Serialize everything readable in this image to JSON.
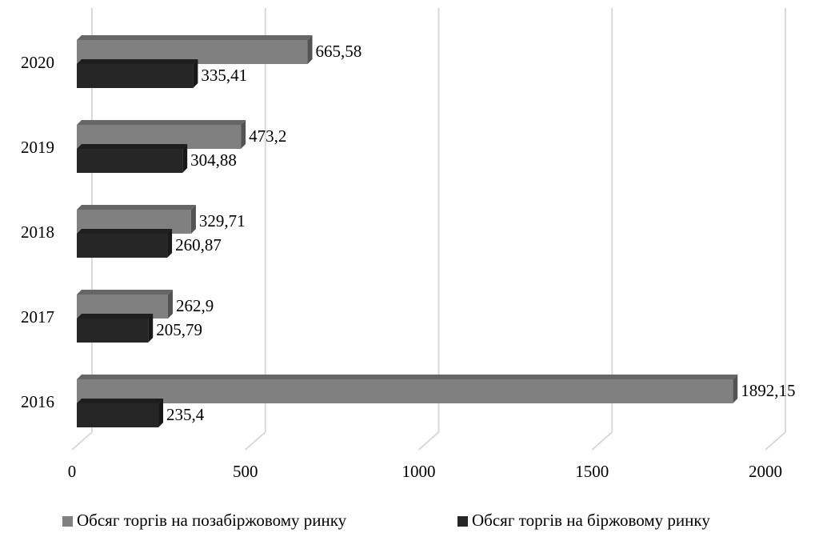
{
  "chart_data": {
    "type": "bar",
    "orientation": "horizontal",
    "categories": [
      "2016",
      "2017",
      "2018",
      "2019",
      "2020"
    ],
    "series": [
      {
        "name": "Обсяг торгів на позабіржовому ринку",
        "color": "#808080",
        "values": [
          1892.15,
          262.9,
          329.71,
          473.2,
          665.58
        ],
        "value_labels": [
          "1892,15",
          "262,9",
          "329,71",
          "473,2",
          "665,58"
        ]
      },
      {
        "name": "Обсяг торгів на біржовому ринку",
        "color": "#262626",
        "values": [
          235.4,
          205.79,
          260.87,
          304.88,
          335.41
        ],
        "value_labels": [
          "235,4",
          "205,79",
          "260,87",
          "304,88",
          "335,41"
        ]
      }
    ],
    "xlim": [
      0,
      2000
    ],
    "xticks": [
      0,
      500,
      1000,
      1500,
      2000
    ],
    "grid": true,
    "legend": "bottom"
  }
}
